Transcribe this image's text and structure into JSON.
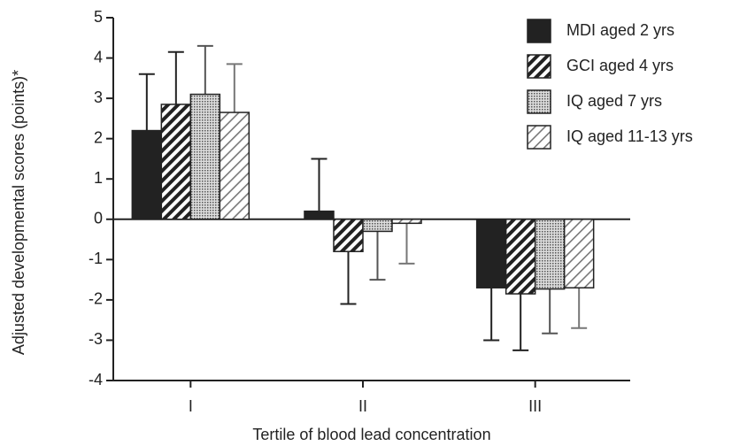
{
  "chart_data": {
    "type": "bar",
    "categories": [
      "I",
      "II",
      "III"
    ],
    "x_label": "Tertile of blood lead concentration",
    "y_label": "Adjusted developmental scores (points)*",
    "ylim": [
      -4,
      5
    ],
    "yticks": [
      -4,
      -3,
      -2,
      -1,
      0,
      1,
      2,
      3,
      4,
      5
    ],
    "legend": "top-right",
    "series": [
      {
        "name": "MDI aged 2 yrs",
        "color": "#222222",
        "pattern": "solid",
        "values": [
          2.2,
          0.2,
          -1.7
        ],
        "errors": [
          1.4,
          1.3,
          1.3
        ]
      },
      {
        "name": "GCI aged 4 yrs",
        "color": "#222222",
        "pattern": "hatch",
        "values": [
          2.85,
          -0.8,
          -1.85
        ],
        "errors": [
          1.3,
          1.3,
          1.4
        ]
      },
      {
        "name": "IQ aged 7 yrs",
        "color": "#555555",
        "pattern": "dots",
        "values": [
          3.1,
          -0.3,
          -1.73
        ],
        "errors": [
          1.2,
          1.2,
          1.1
        ]
      },
      {
        "name": "IQ aged 11-13 yrs",
        "color": "#777777",
        "pattern": "light-hatch",
        "values": [
          2.65,
          -0.1,
          -1.7
        ],
        "errors": [
          1.2,
          1.0,
          1.0
        ]
      }
    ]
  }
}
